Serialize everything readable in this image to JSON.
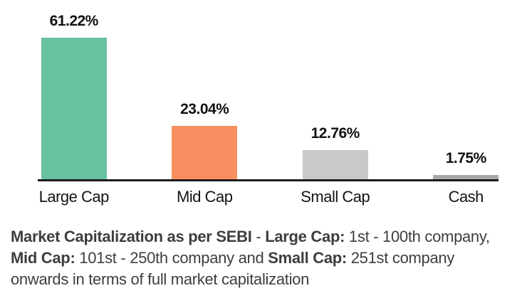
{
  "chart_data": {
    "type": "bar",
    "categories": [
      "Large Cap",
      "Mid Cap",
      "Small Cap",
      "Cash"
    ],
    "values": [
      61.22,
      23.04,
      12.76,
      1.75
    ],
    "value_labels": [
      "61.22%",
      "23.04%",
      "12.76%",
      "1.75%"
    ],
    "bar_colors": [
      "#66c29f",
      "#f88f61",
      "#c9c9c9",
      "#a9a9a9"
    ],
    "title": "",
    "xlabel": "",
    "ylabel": "",
    "ylim": [
      0,
      65
    ],
    "grid": false,
    "legend": false,
    "axis_line_color": "#1c1c1c",
    "value_label_color": "#111111",
    "category_label_color": "#141414"
  },
  "footnote": {
    "color": "#3e3e3e",
    "segments": [
      {
        "text": "Market Capitalization as per SEBI",
        "bold": true
      },
      {
        "text": " - ",
        "bold": false
      },
      {
        "text": "Large Cap:",
        "bold": true
      },
      {
        "text": " 1st - 100th company, ",
        "bold": false
      },
      {
        "text": "Mid Cap:",
        "bold": true
      },
      {
        "text": " 101st - 250th company and ",
        "bold": false
      },
      {
        "text": "Small Cap:",
        "bold": true
      },
      {
        "text": " 251st company onwards in terms of full market capitalization",
        "bold": false
      }
    ]
  }
}
